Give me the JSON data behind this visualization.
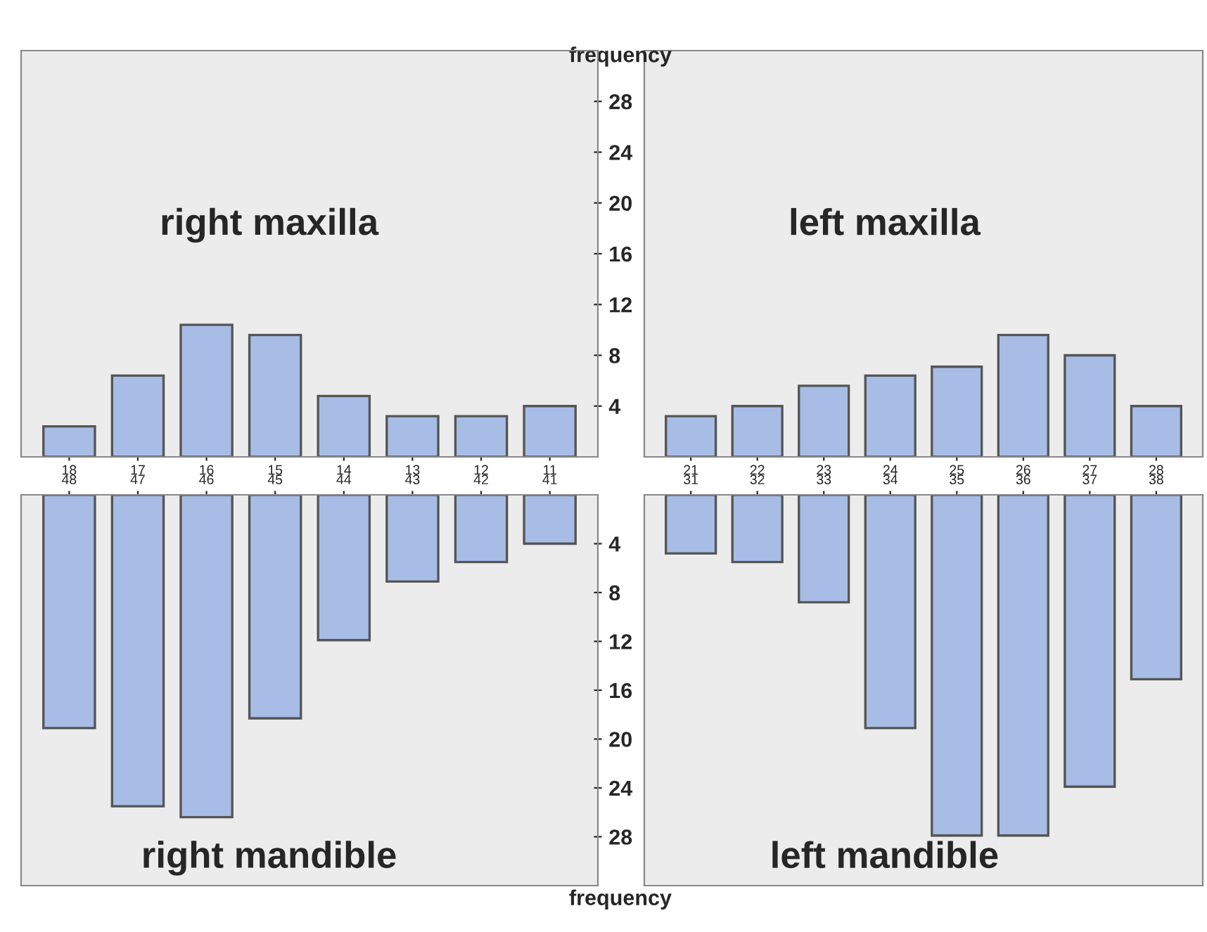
{
  "chart_data": [
    {
      "type": "bar",
      "title": "right maxilla",
      "ylabel": "frequency",
      "categories": [
        "18",
        "17",
        "16",
        "15",
        "14",
        "13",
        "12",
        "11"
      ],
      "values": [
        2.4,
        6.4,
        10.4,
        9.6,
        4.8,
        3.2,
        3.2,
        4
      ],
      "color": "#a7bde6",
      "ylim": [
        0,
        32
      ],
      "yticks": [
        4,
        8,
        12,
        16,
        20,
        24,
        28
      ],
      "grid": false
    },
    {
      "type": "bar",
      "title": "left maxilla",
      "categories": [
        "21",
        "22",
        "23",
        "24",
        "25",
        "26",
        "27",
        "28"
      ],
      "values": [
        3.2,
        4,
        5.6,
        6.4,
        7.1,
        9.6,
        8,
        4
      ],
      "color": "#a7bde6",
      "ylim": [
        0,
        32
      ],
      "yticks": [
        4,
        8,
        12,
        16,
        20,
        24,
        28
      ],
      "tick_labels": "x",
      "grid": false
    },
    {
      "type": "bar",
      "title": "right mandible",
      "ylabel": "frequency",
      "categories": [
        "48",
        "47",
        "46",
        "45",
        "44",
        "43",
        "42",
        "41"
      ],
      "values": [
        19.1,
        25.5,
        26.4,
        18.3,
        11.9,
        7.1,
        5.5,
        4
      ],
      "color": "#a7bde6",
      "ylim": [
        32,
        0
      ],
      "yticks": [
        4,
        8,
        12,
        16,
        20,
        24,
        28
      ],
      "grid": false
    },
    {
      "type": "bar",
      "title": "left mandible",
      "categories": [
        "31",
        "32",
        "33",
        "34",
        "35",
        "36",
        "37",
        "38"
      ],
      "values": [
        4.8,
        5.5,
        8.8,
        19.1,
        27.9,
        27.9,
        23.9,
        15.1
      ],
      "color": "#a7bde6",
      "ylim": [
        32,
        0
      ],
      "yticks": [
        4,
        8,
        12,
        16,
        20,
        24,
        28
      ],
      "tick_labels": "x",
      "grid": false
    }
  ]
}
